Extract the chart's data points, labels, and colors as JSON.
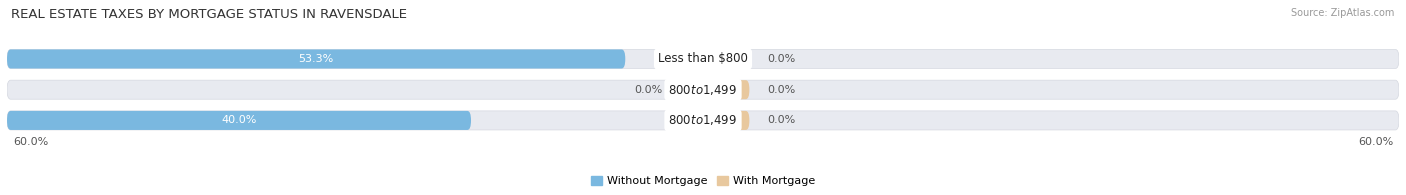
{
  "title": "REAL ESTATE TAXES BY MORTGAGE STATUS IN RAVENSDALE",
  "source": "Source: ZipAtlas.com",
  "rows": [
    {
      "label": "Less than $800",
      "without_mortgage": 53.3,
      "with_mortgage": 0.0
    },
    {
      "label": "$800 to $1,499",
      "without_mortgage": 0.0,
      "with_mortgage": 0.0
    },
    {
      "label": "$800 to $1,499",
      "without_mortgage": 40.0,
      "with_mortgage": 0.0
    }
  ],
  "x_left_label": "60.0%",
  "x_right_label": "60.0%",
  "x_max": 60.0,
  "color_without": "#7ab8e0",
  "color_with": "#e8c89e",
  "bar_height": 0.62,
  "bg_bar_color": "#e8eaf0",
  "bg_bar_edge": "#d5d8e0",
  "legend_without": "Without Mortgage",
  "legend_with": "With Mortgage",
  "title_fontsize": 9.5,
  "label_fontsize": 8.0,
  "tick_fontsize": 8.0,
  "source_fontsize": 7.0
}
